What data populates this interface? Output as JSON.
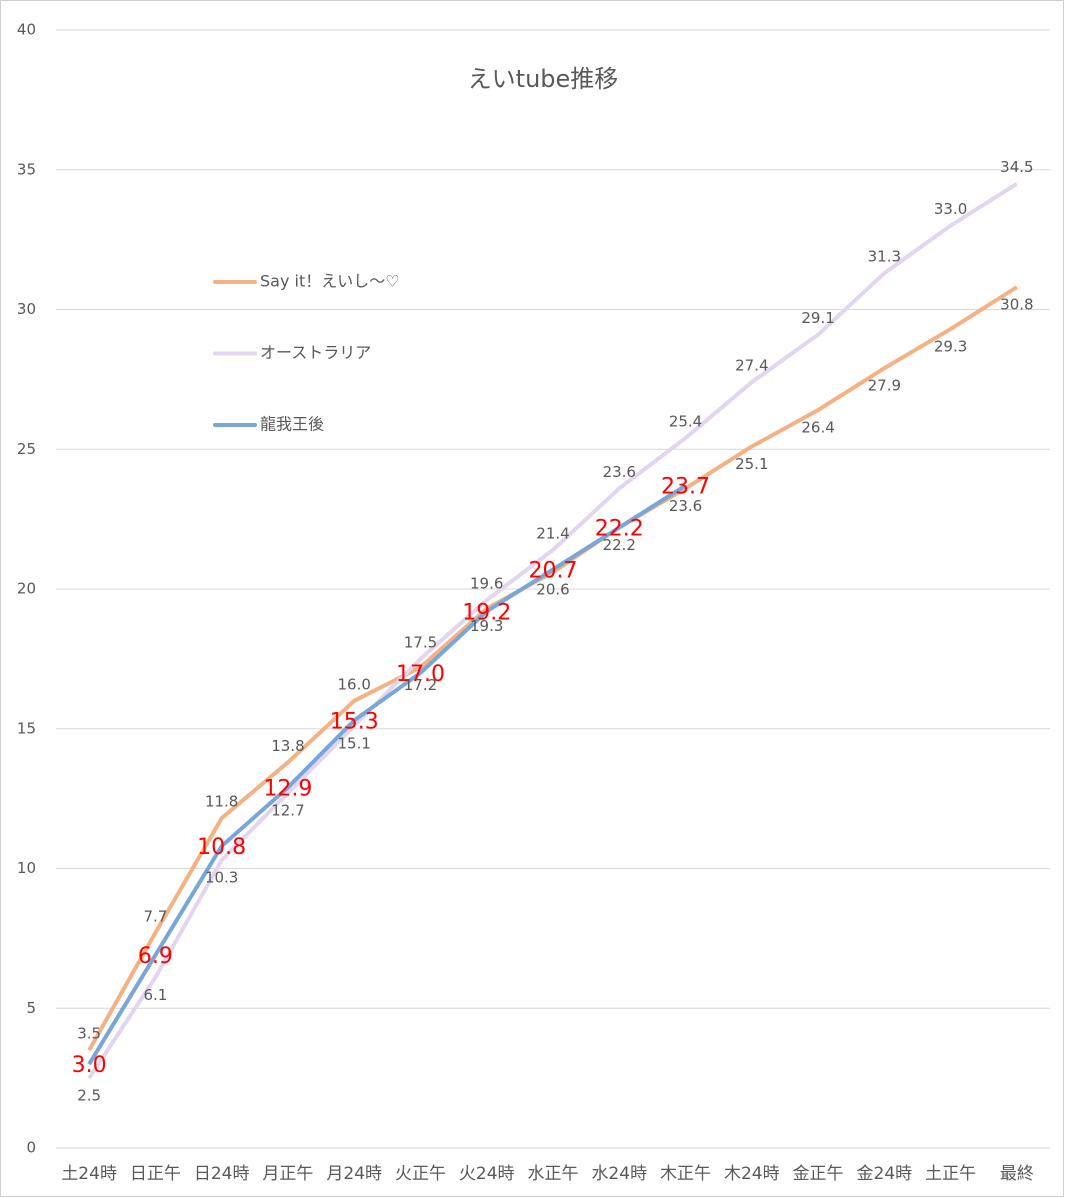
{
  "chart_data": {
    "type": "line",
    "title": "えいtube推移",
    "categories": [
      "土24時",
      "日正午",
      "日24時",
      "月正午",
      "月24時",
      "火正午",
      "火24時",
      "水正午",
      "水24時",
      "木正午",
      "木24時",
      "金正午",
      "金24時",
      "土正午",
      "最終"
    ],
    "series": [
      {
        "name": "Say it！えいし～♡",
        "color": "#f4b183",
        "values": [
          3.5,
          7.7,
          11.8,
          13.8,
          16.0,
          17.2,
          19.3,
          20.6,
          22.2,
          23.6,
          25.1,
          26.4,
          27.9,
          29.3,
          30.8
        ],
        "value_labels": [
          "3.5",
          "7.7",
          "11.8",
          "13.8",
          "16.0",
          "17.2",
          "19.3",
          "20.6",
          "22.2",
          "23.6",
          "25.1",
          "26.4",
          "27.9",
          "29.3",
          "30.8"
        ]
      },
      {
        "name": "オーストラリア",
        "color": "#e2d5ef",
        "values": [
          2.5,
          6.1,
          10.3,
          12.7,
          15.1,
          17.5,
          19.6,
          21.4,
          23.6,
          25.4,
          27.4,
          29.1,
          31.3,
          33.0,
          34.5
        ],
        "value_labels": [
          "2.5",
          "6.1",
          "10.3",
          "12.7",
          "15.1",
          "17.5",
          "19.6",
          "21.4",
          "23.6",
          "25.4",
          "27.4",
          "29.1",
          "31.3",
          "33.0",
          "34.5"
        ]
      },
      {
        "name": "龍我王後",
        "color": "#78a6d9",
        "values": [
          3.0,
          6.9,
          10.8,
          12.9,
          15.3,
          17.0,
          19.2,
          20.7,
          22.2,
          23.7,
          null,
          null,
          null,
          null,
          null
        ],
        "value_labels": [
          "3.0",
          "6.9",
          "10.8",
          "12.9",
          "15.3",
          "17.0",
          "19.2",
          "20.7",
          "22.2",
          "23.7",
          null,
          null,
          null,
          null,
          null
        ]
      }
    ],
    "ylim": [
      0,
      40
    ],
    "yticks": [
      0,
      5,
      10,
      15,
      20,
      25,
      30,
      35,
      40
    ],
    "grid": true,
    "legend": "left"
  }
}
